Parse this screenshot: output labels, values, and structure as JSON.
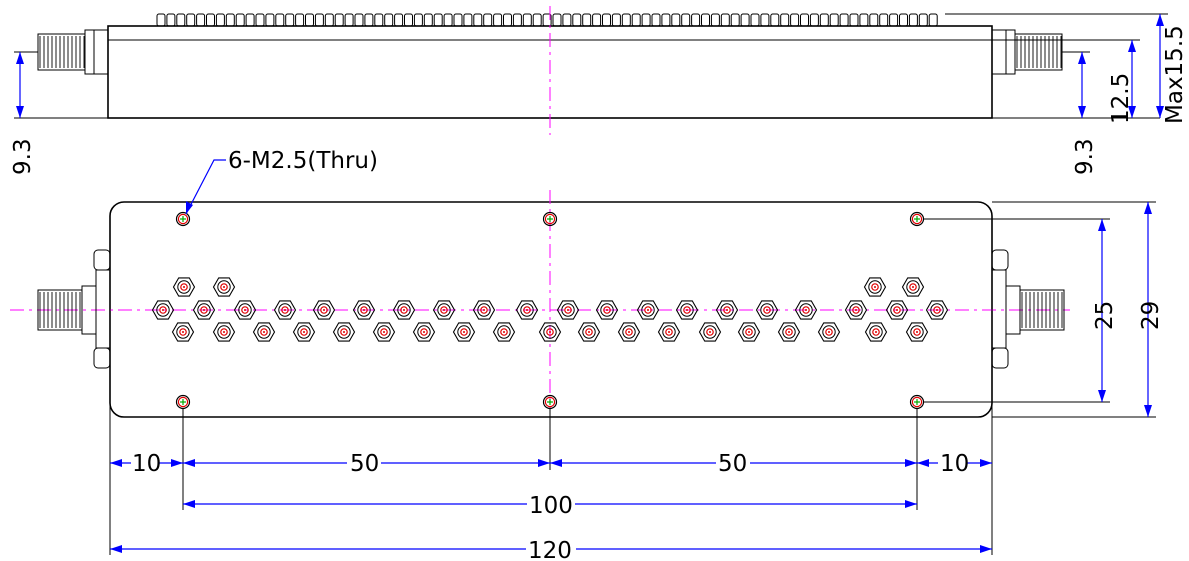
{
  "drawing": {
    "hole_note": "6-M2.5(Thru)",
    "top_view": {
      "height_labels": {
        "left_connector": "9.3",
        "right_connector": "9.3",
        "body": "12.5",
        "max": "Max15.5"
      }
    },
    "bottom_view": {
      "height_labels": {
        "hole_spacing": "25",
        "overall": "29"
      },
      "width_labels": {
        "edge_left": "10",
        "half_left": "50",
        "half_right": "50",
        "edge_right": "10",
        "hole_span": "100",
        "overall": "120"
      }
    }
  },
  "colors": {
    "outline": "#000000",
    "dimension": "#0000ff",
    "centerline": "#ff00ff",
    "tuning_hole": "#e00000"
  },
  "icons": {
    "connector": "sma-connector-icon",
    "tuning_screw": "hex-nut-icon",
    "mount_hole": "mount-hole-icon"
  }
}
